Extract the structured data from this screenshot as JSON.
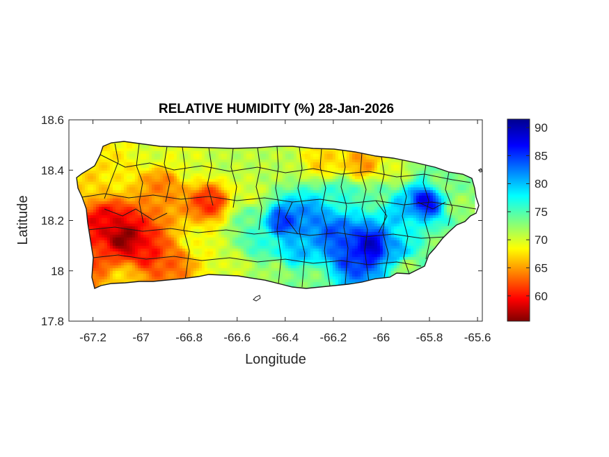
{
  "title": "RELATIVE HUMIDITY (%) 28-Jan-2026",
  "axes": {
    "xlabel": "Longitude",
    "ylabel": "Latitude",
    "xlim": [
      -67.3,
      -65.58
    ],
    "ylim": [
      17.8,
      18.6
    ],
    "xticks": [
      "-67.2",
      "-67",
      "-66.8",
      "-66.6",
      "-66.4",
      "-66.2",
      "-66",
      "-65.8",
      "-65.6"
    ],
    "yticks": [
      "18.6",
      "18.4",
      "18.2",
      "18",
      "17.8"
    ]
  },
  "colorbar": {
    "colormap": "jet",
    "range": [
      55.5,
      91.5
    ],
    "ticks": [
      "90",
      "85",
      "80",
      "75",
      "70",
      "65",
      "60"
    ]
  },
  "chart_data": {
    "type": "heatmap",
    "region": "Puerto Rico",
    "title": "RELATIVE HUMIDITY (%) 28-Jan-2026",
    "xlabel": "Longitude",
    "ylabel": "Latitude",
    "xlim": [
      -67.3,
      -65.58
    ],
    "ylim": [
      17.8,
      18.6
    ],
    "clim": [
      55.5,
      91.5
    ],
    "colormap": "jet",
    "field_anchors": [
      {
        "lon": -67.08,
        "lat": 18.13,
        "value": 56
      },
      {
        "lon": -67.15,
        "lat": 18.2,
        "value": 59
      },
      {
        "lon": -66.98,
        "lat": 18.08,
        "value": 60
      },
      {
        "lon": -67.18,
        "lat": 18.06,
        "value": 62
      },
      {
        "lon": -66.72,
        "lat": 18.28,
        "value": 61
      },
      {
        "lon": -66.92,
        "lat": 18.35,
        "value": 64
      },
      {
        "lon": -66.88,
        "lat": 18.05,
        "value": 63
      },
      {
        "lon": -67.1,
        "lat": 18.38,
        "value": 68
      },
      {
        "lon": -67.24,
        "lat": 18.34,
        "value": 67
      },
      {
        "lon": -67.08,
        "lat": 17.98,
        "value": 67
      },
      {
        "lon": -66.96,
        "lat": 18.47,
        "value": 70
      },
      {
        "lon": -66.8,
        "lat": 18.42,
        "value": 70
      },
      {
        "lon": -66.65,
        "lat": 18.44,
        "value": 71
      },
      {
        "lon": -66.55,
        "lat": 18.3,
        "value": 70
      },
      {
        "lon": -66.62,
        "lat": 18.02,
        "value": 70
      },
      {
        "lon": -66.78,
        "lat": 18.12,
        "value": 69
      },
      {
        "lon": -66.42,
        "lat": 18.42,
        "value": 71
      },
      {
        "lon": -66.25,
        "lat": 18.44,
        "value": 67
      },
      {
        "lon": -66.08,
        "lat": 18.43,
        "value": 65
      },
      {
        "lon": -65.95,
        "lat": 18.4,
        "value": 70
      },
      {
        "lon": -65.75,
        "lat": 18.36,
        "value": 73
      },
      {
        "lon": -65.68,
        "lat": 18.27,
        "value": 72
      },
      {
        "lon": -65.82,
        "lat": 18.28,
        "value": 87
      },
      {
        "lon": -65.92,
        "lat": 18.25,
        "value": 80
      },
      {
        "lon": -66.42,
        "lat": 18.2,
        "value": 85
      },
      {
        "lon": -66.3,
        "lat": 18.22,
        "value": 82
      },
      {
        "lon": -66.2,
        "lat": 18.15,
        "value": 84
      },
      {
        "lon": -66.05,
        "lat": 18.1,
        "value": 89
      },
      {
        "lon": -66.12,
        "lat": 18.06,
        "value": 85
      },
      {
        "lon": -65.95,
        "lat": 18.08,
        "value": 81
      },
      {
        "lon": -65.88,
        "lat": 18.16,
        "value": 77
      },
      {
        "lon": -65.78,
        "lat": 18.12,
        "value": 73
      },
      {
        "lon": -65.9,
        "lat": 18.02,
        "value": 72
      },
      {
        "lon": -66.3,
        "lat": 17.98,
        "value": 73
      },
      {
        "lon": -66.45,
        "lat": 18.0,
        "value": 72
      },
      {
        "lon": -66.5,
        "lat": 18.12,
        "value": 76
      },
      {
        "lon": -66.55,
        "lat": 18.22,
        "value": 74
      },
      {
        "lon": -66.18,
        "lat": 18.3,
        "value": 76
      },
      {
        "lon": -66.02,
        "lat": 18.3,
        "value": 74
      },
      {
        "lon": -66.35,
        "lat": 18.08,
        "value": 80
      }
    ]
  }
}
